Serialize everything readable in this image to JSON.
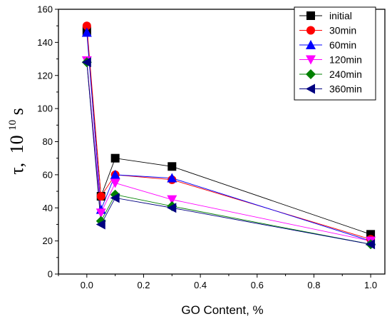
{
  "chart_data": {
    "type": "line",
    "xlabel": "GO Content, %",
    "ylabel": {
      "symbol": "τ,",
      "base": "10",
      "exponent": "10",
      "unit": "s"
    },
    "xlim": [
      -0.1,
      1.05
    ],
    "ylim": [
      0,
      160
    ],
    "x_ticks": [
      "0.0",
      "0.2",
      "0.4",
      "0.6",
      "0.8",
      "1.0"
    ],
    "x_tick_values": [
      0,
      0.2,
      0.4,
      0.6,
      0.8,
      1.0
    ],
    "y_ticks": [
      "0",
      "20",
      "40",
      "60",
      "80",
      "100",
      "120",
      "140",
      "160"
    ],
    "y_tick_values": [
      0,
      20,
      40,
      60,
      80,
      100,
      120,
      140,
      160
    ],
    "x": [
      0,
      0.05,
      0.1,
      0.3,
      1.0
    ],
    "legend_position": "top-right",
    "grid": false,
    "series": [
      {
        "name": "initial",
        "values": [
          147,
          47,
          70,
          65,
          24
        ],
        "marker": "square",
        "color": "#000000",
        "line_color": "#000000"
      },
      {
        "name": "30min",
        "values": [
          150,
          47,
          60,
          57,
          21
        ],
        "marker": "circle",
        "color": "#ff0000",
        "line_color": "#ff0000"
      },
      {
        "name": "60min",
        "values": [
          146,
          39,
          60,
          58,
          20
        ],
        "marker": "triangle-up",
        "color": "#0000ff",
        "line_color": "#0000ff"
      },
      {
        "name": "120min",
        "values": [
          129,
          37,
          55,
          45,
          20
        ],
        "marker": "triangle-down",
        "color": "#ff00ff",
        "line_color": "#ff00ff"
      },
      {
        "name": "240min",
        "values": [
          128,
          32,
          48,
          41,
          18
        ],
        "marker": "diamond",
        "color": "#008000",
        "line_color": "#008000"
      },
      {
        "name": "360min",
        "values": [
          128,
          30,
          46,
          40,
          18
        ],
        "marker": "triangle-left",
        "color": "#000080",
        "line_color": "#000080"
      }
    ]
  }
}
